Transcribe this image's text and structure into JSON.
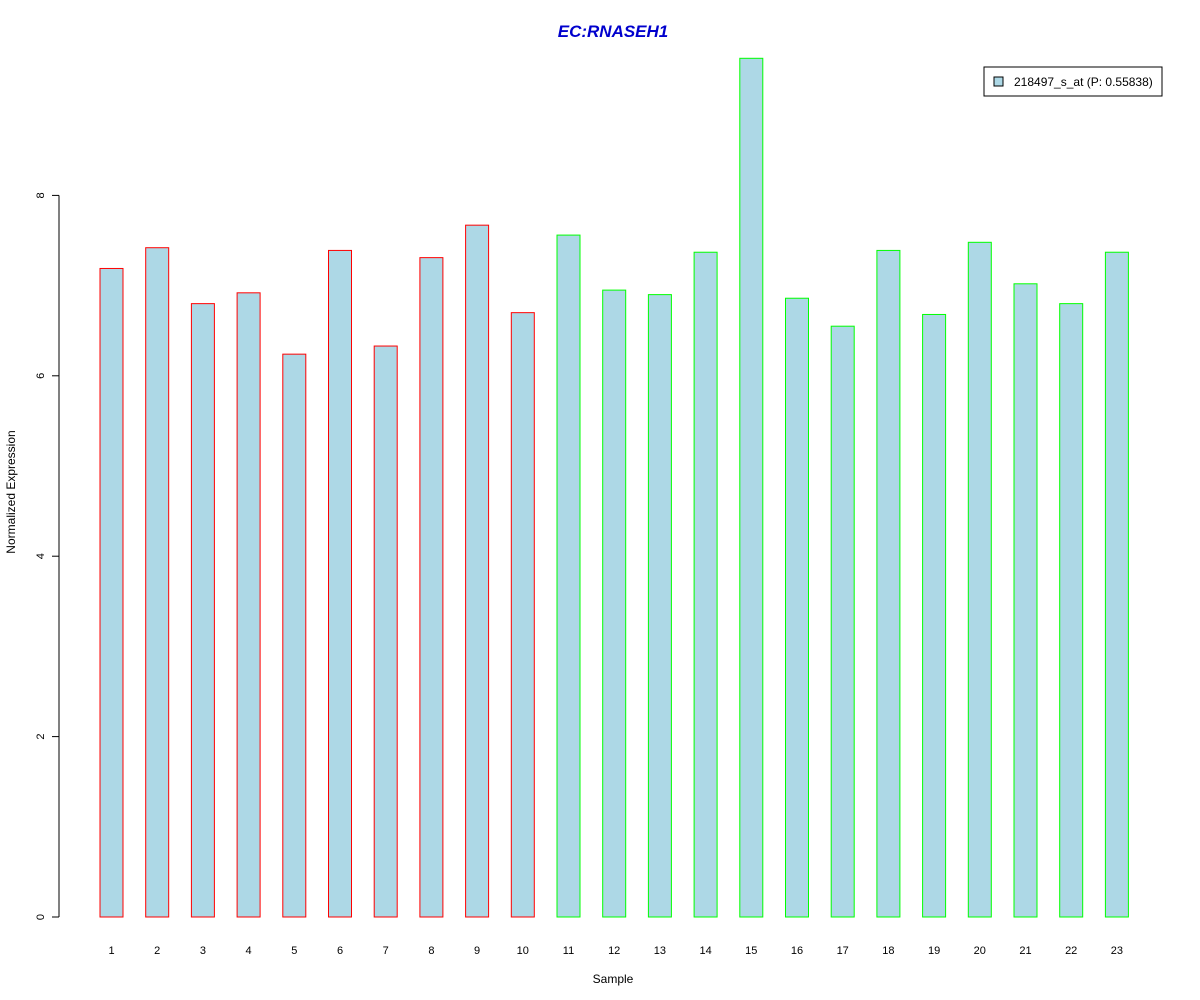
{
  "chart_data": {
    "type": "bar",
    "title": "EC:RNASEH1",
    "xlabel": "Sample",
    "ylabel": "Normalized Expression",
    "categories": [
      "1",
      "2",
      "3",
      "4",
      "5",
      "6",
      "7",
      "8",
      "9",
      "10",
      "11",
      "12",
      "13",
      "14",
      "15",
      "16",
      "17",
      "18",
      "19",
      "20",
      "21",
      "22",
      "23"
    ],
    "series": [
      {
        "name": "218497_s_at (P: 0.55838)",
        "values": [
          7.19,
          7.42,
          6.8,
          6.92,
          6.24,
          7.39,
          6.33,
          7.31,
          7.67,
          6.7,
          7.56,
          6.95,
          6.9,
          7.37,
          9.52,
          6.86,
          6.55,
          7.39,
          6.68,
          7.48,
          7.02,
          6.8,
          7.37
        ]
      }
    ],
    "groups": [
      1,
      1,
      1,
      1,
      1,
      1,
      1,
      1,
      1,
      1,
      2,
      2,
      2,
      2,
      2,
      2,
      2,
      2,
      2,
      2,
      2,
      2,
      2
    ],
    "yticks": [
      "0",
      "2",
      "4",
      "6",
      "8"
    ],
    "ylim": [
      0,
      9.6
    ],
    "legend_position": "top-right",
    "grid": false,
    "colors": {
      "bar_fill": "#add8e6",
      "group1_border": "#ff0000",
      "group2_border": "#00ff00",
      "title": "#0000cd"
    }
  }
}
